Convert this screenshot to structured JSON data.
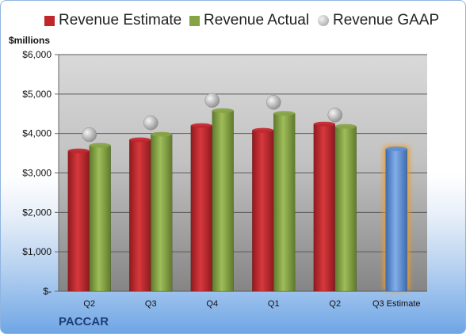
{
  "chart_data": {
    "type": "bar",
    "ylabel": "$millions",
    "ylim": [
      0,
      6000
    ],
    "yticks": [
      "$-",
      "$1,000",
      "$2,000",
      "$3,000",
      "$4,000",
      "$5,000",
      "$6,000"
    ],
    "categories": [
      "Q2",
      "Q3",
      "Q4",
      "Q1",
      "Q2",
      "Q3 Estimate"
    ],
    "series": [
      {
        "name": "Revenue Estimate",
        "type": "bar",
        "values": [
          3560,
          3840,
          4200,
          4080,
          4240,
          null
        ],
        "color": "#c0262c"
      },
      {
        "name": "Revenue Actual",
        "type": "bar",
        "values": [
          3700,
          3980,
          4580,
          4510,
          4180,
          null
        ],
        "color": "#86a346"
      },
      {
        "name": "Revenue GAAP",
        "type": "scatter",
        "values": [
          3970,
          4270,
          4840,
          4790,
          4470,
          null
        ],
        "color": "#b5b5b5"
      },
      {
        "name": "",
        "type": "bar",
        "values": [
          null,
          null,
          null,
          null,
          null,
          3610
        ],
        "color": "#5c8ed6",
        "highlight": true
      }
    ],
    "grid": true,
    "legend": "top"
  },
  "footer": {
    "company": "PACCAR"
  }
}
